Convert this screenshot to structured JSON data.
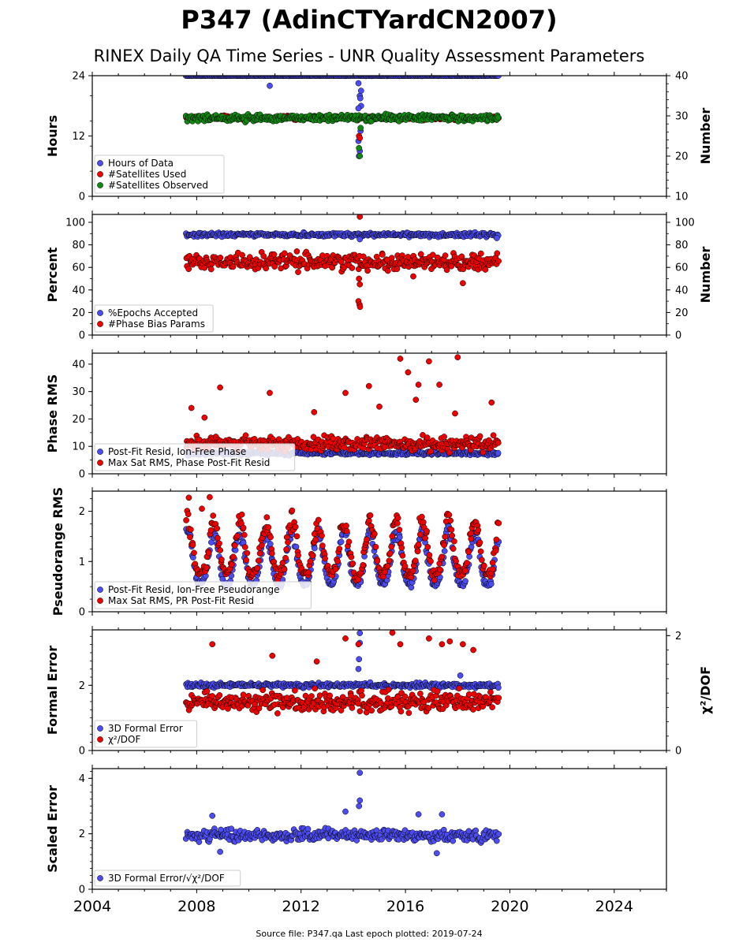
{
  "title": "P347 (AdinCTYardCN2007)",
  "subtitle": "RINEX Daily QA Time Series - UNR Quality Assessment Parameters",
  "source_note": "Source file: P347.qa Last epoch plotted: 2019-07-24",
  "colors": {
    "blue": "#4c4cf0",
    "red": "#ee0000",
    "green": "#118811",
    "edge": "#000000"
  },
  "chart_data": [
    {
      "type": "scatter",
      "panel": "hours",
      "ylabel": "Hours",
      "y2label": "Number",
      "ylim": [
        0,
        24
      ],
      "y2lim": [
        10,
        40
      ],
      "yticks": [
        "0",
        "12",
        "24"
      ],
      "y2ticks": [
        "10",
        "20",
        "30",
        "40"
      ],
      "xlim": [
        2004,
        2026
      ],
      "legend_position": "lower-left",
      "series": [
        {
          "name": "Hours of Data",
          "color": "blue",
          "axis": "left",
          "mean": 24,
          "spread": 0.05,
          "clipTop": true,
          "outliers": [
            [
              2010.8,
              22.0
            ],
            [
              2014.2,
              22.5
            ],
            [
              2014.25,
              20.0
            ],
            [
              2014.3,
              18.0
            ],
            [
              2014.22,
              16.0
            ],
            [
              2014.28,
              13.0
            ],
            [
              2014.2,
              11.0
            ],
            [
              2014.25,
              9.0
            ],
            [
              2014.22,
              8.0
            ],
            [
              2014.3,
              21.0
            ],
            [
              2014.27,
              19.5
            ],
            [
              2014.2,
              17.5
            ]
          ]
        },
        {
          "name": "#Satellites Used",
          "color": "red",
          "axis": "right",
          "mean": 29.5,
          "spread": 0.4,
          "outliers": [
            [
              2014.22,
              25.0
            ],
            [
              2014.25,
              24.5
            ],
            [
              2009.1,
              30.0
            ]
          ]
        },
        {
          "name": "#Satellites Observed",
          "color": "green",
          "axis": "right",
          "mean": 29.5,
          "spread": 0.7,
          "outliers": [
            [
              2014.22,
              22.0
            ],
            [
              2014.25,
              20.0
            ],
            [
              2014.28,
              27.0
            ]
          ]
        }
      ]
    },
    {
      "type": "scatter",
      "panel": "percent",
      "ylabel": "Percent",
      "y2label": "Number",
      "ylim": [
        0,
        107
      ],
      "y2lim": [
        0,
        107
      ],
      "yticks": [
        "0",
        "20",
        "40",
        "60",
        "80",
        "100"
      ],
      "y2ticks": [
        "0",
        "20",
        "40",
        "60",
        "80",
        "100"
      ],
      "xlim": [
        2004,
        2026
      ],
      "legend_position": "lower-left",
      "series": [
        {
          "name": "%Epochs Accepted",
          "color": "blue",
          "axis": "left",
          "mean": 89,
          "spread": 1.5,
          "outliers": [
            [
              2014.25,
              85
            ],
            [
              2019.5,
              86
            ]
          ]
        },
        {
          "name": "#Phase Bias Params",
          "color": "red",
          "axis": "right",
          "mean": 65,
          "spread": 6,
          "outliers": [
            [
              2014.25,
              105
            ],
            [
              2014.22,
              50
            ],
            [
              2014.25,
              45
            ],
            [
              2014.2,
              30
            ],
            [
              2014.24,
              27
            ],
            [
              2014.26,
              25
            ],
            [
              2018.2,
              46
            ],
            [
              2016.3,
              52
            ]
          ]
        }
      ]
    },
    {
      "type": "scatter",
      "panel": "phase",
      "ylabel": "Phase RMS",
      "ylim": [
        0,
        44
      ],
      "yticks": [
        "0",
        "10",
        "20",
        "30",
        "40"
      ],
      "xlim": [
        2004,
        2026
      ],
      "legend_position": "lower-left",
      "series": [
        {
          "name": "Post-Fit Resid, Ion-Free Phase",
          "color": "blue",
          "axis": "left",
          "mean": 7.5,
          "spread": 0.6,
          "outliers": []
        },
        {
          "name": "Max Sat RMS, Phase Post-Fit Resid",
          "color": "red",
          "axis": "left",
          "mean": 11,
          "spread": 2.2,
          "outliers": [
            [
              2008.9,
              31.5
            ],
            [
              2010.8,
              29.5
            ],
            [
              2013.7,
              29.5
            ],
            [
              2014.6,
              32.0
            ],
            [
              2015.8,
              42.0
            ],
            [
              2016.1,
              37.0
            ],
            [
              2016.5,
              32.5
            ],
            [
              2016.9,
              41.0
            ],
            [
              2017.3,
              32.5
            ],
            [
              2018.0,
              42.5
            ],
            [
              2019.3,
              26.0
            ],
            [
              2016.4,
              27.0
            ],
            [
              2017.9,
              22.0
            ],
            [
              2007.8,
              24.0
            ],
            [
              2008.3,
              20.5
            ],
            [
              2012.5,
              22.5
            ],
            [
              2015.0,
              24.5
            ]
          ]
        }
      ]
    },
    {
      "type": "scatter",
      "panel": "pseudorange",
      "ylabel": "Pseudorange RMS",
      "ylim": [
        0,
        2.4
      ],
      "yticks": [
        "0",
        "1",
        "2"
      ],
      "xlim": [
        2004,
        2026
      ],
      "legend_position": "lower-left",
      "seasonal": {
        "base": 0.55,
        "amp": 1.05,
        "phase": 0.35
      },
      "series": [
        {
          "name": "Post-Fit Resid, Ion-Free Pseudorange",
          "color": "blue",
          "axis": "left",
          "offset": 0.0,
          "spread": 0.05,
          "outliers": []
        },
        {
          "name": "Max Sat RMS, PR Post-Fit Resid",
          "color": "red",
          "axis": "left",
          "offset": 0.2,
          "spread": 0.1,
          "outliers": [
            [
              2007.7,
              2.27
            ],
            [
              2008.5,
              2.28
            ],
            [
              2008.2,
              2.05
            ]
          ]
        }
      ]
    },
    {
      "type": "scatter",
      "panel": "formal",
      "ylabel": "Formal Error",
      "y2label": "χ²/DOF",
      "ylim": [
        0,
        3.7
      ],
      "y2lim": [
        0,
        2.1
      ],
      "yticks": [
        "0",
        "2"
      ],
      "y2ticks": [
        "0",
        "2"
      ],
      "xlim": [
        2004,
        2026
      ],
      "legend_position": "lower-left",
      "series": [
        {
          "name": "3D Formal Error",
          "color": "blue",
          "axis": "left",
          "mean": 2.0,
          "spread": 0.06,
          "outliers": [
            [
              2014.25,
              3.6
            ],
            [
              2014.25,
              3.3
            ],
            [
              2014.22,
              2.8
            ],
            [
              2018.1,
              2.3
            ],
            [
              2014.2,
              2.5
            ]
          ]
        },
        {
          "name": "χ²/DOF",
          "color": "red",
          "axis": "right",
          "mean": 0.85,
          "spread": 0.15,
          "outliers": [
            [
              2008.6,
              1.85
            ],
            [
              2010.9,
              1.65
            ],
            [
              2013.7,
              1.95
            ],
            [
              2014.2,
              1.85
            ],
            [
              2015.5,
              2.05
            ],
            [
              2015.8,
              1.85
            ],
            [
              2016.9,
              1.95
            ],
            [
              2017.4,
              1.85
            ],
            [
              2017.7,
              1.9
            ],
            [
              2018.2,
              1.85
            ],
            [
              2018.6,
              1.75
            ],
            [
              2012.6,
              1.55
            ]
          ]
        }
      ]
    },
    {
      "type": "scatter",
      "panel": "scaled",
      "ylabel": "Scaled Error",
      "ylim": [
        0,
        4.35
      ],
      "yticks": [
        "0",
        "2",
        "4"
      ],
      "xlim": [
        2004,
        2026
      ],
      "xticks": [
        "2004",
        "2008",
        "2012",
        "2016",
        "2020",
        "2024"
      ],
      "legend_position": "lower-left",
      "series": [
        {
          "name": "3D Formal Error/√χ²/DOF",
          "color": "blue",
          "axis": "left",
          "mean": 1.95,
          "spread": 0.18,
          "outliers": [
            [
              2014.25,
              4.2
            ],
            [
              2014.25,
              3.2
            ],
            [
              2014.22,
              3.0
            ],
            [
              2013.7,
              2.8
            ],
            [
              2008.6,
              2.65
            ],
            [
              2016.5,
              2.7
            ],
            [
              2008.9,
              1.35
            ],
            [
              2017.2,
              1.3
            ],
            [
              2017.4,
              2.7
            ]
          ]
        }
      ]
    }
  ]
}
